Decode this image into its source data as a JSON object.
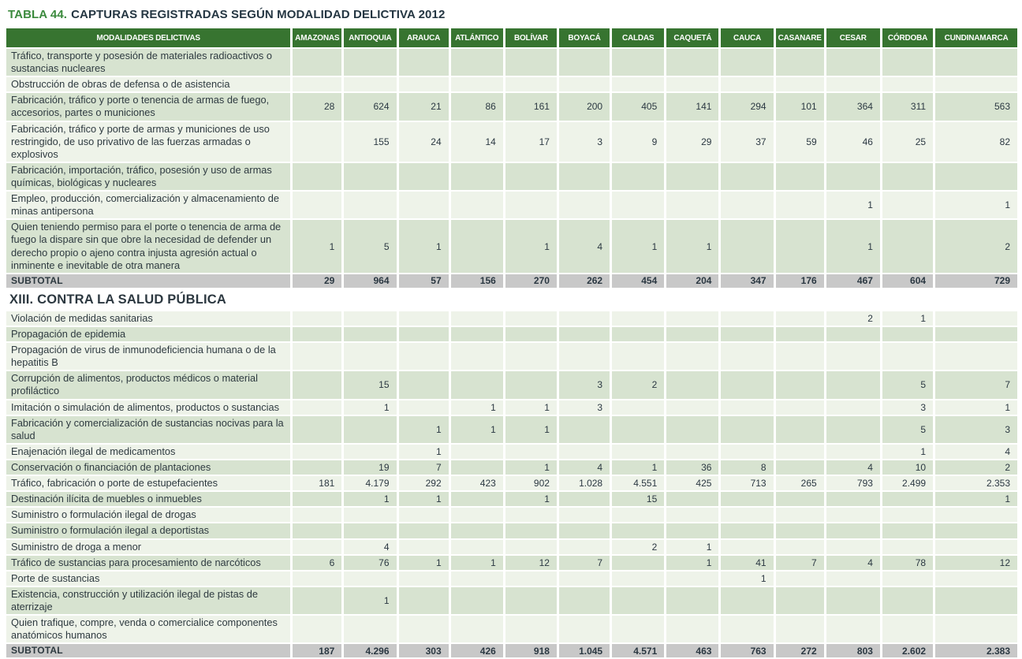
{
  "title": {
    "prefix": "TABLA 44.",
    "text": "CAPTURAS REGISTRADAS SEGÚN MODALIDAD DELICTIVA 2012"
  },
  "colors": {
    "title_green": "#3b8a3d",
    "title_dark": "#243642",
    "header_bg": "#377430",
    "row_green": "#d7e3d0",
    "row_pale": "#eef3e9",
    "subtotal_gray": "#c8c8c8"
  },
  "table": {
    "first_column_header": "MODALIDADES DELICTIVAS",
    "columns": [
      "AMAZONAS",
      "ANTIOQUIA",
      "ARAUCA",
      "ATLÁNTICO",
      "BOLÍVAR",
      "BOYACÁ",
      "CALDAS",
      "CAQUETÁ",
      "CAUCA",
      "CASANARE",
      "CESAR",
      "CÓRDOBA",
      "CUNDINAMARCA"
    ],
    "groups": [
      {
        "section": null,
        "rows": [
          {
            "type": "data",
            "label": "Tráfico, transporte y posesión de materiales radioactivos o sustancias nucleares",
            "values": [
              "",
              "",
              "",
              "",
              "",
              "",
              "",
              "",
              "",
              "",
              "",
              "",
              ""
            ]
          },
          {
            "type": "data",
            "label": "Obstrucción de obras de defensa o de asistencia",
            "values": [
              "",
              "",
              "",
              "",
              "",
              "",
              "",
              "",
              "",
              "",
              "",
              "",
              ""
            ]
          },
          {
            "type": "data",
            "label": "Fabricación, tráfico y porte o tenencia de armas de fuego, accesorios, partes o municiones",
            "values": [
              "28",
              "624",
              "21",
              "86",
              "161",
              "200",
              "405",
              "141",
              "294",
              "101",
              "364",
              "311",
              "563"
            ]
          },
          {
            "type": "data",
            "label": "Fabricación, tráfico y porte de armas y municiones de uso restringido, de uso privativo de las fuerzas armadas o explosivos",
            "values": [
              "",
              "155",
              "24",
              "14",
              "17",
              "3",
              "9",
              "29",
              "37",
              "59",
              "46",
              "25",
              "82"
            ]
          },
          {
            "type": "data",
            "label": "Fabricación, importación, tráfico, posesión y uso de armas químicas, biológicas y nucleares",
            "values": [
              "",
              "",
              "",
              "",
              "",
              "",
              "",
              "",
              "",
              "",
              "",
              "",
              ""
            ]
          },
          {
            "type": "data",
            "label": "Empleo, producción, comercialización y almacenamiento de minas antipersona",
            "values": [
              "",
              "",
              "",
              "",
              "",
              "",
              "",
              "",
              "",
              "",
              "1",
              "",
              "1"
            ]
          },
          {
            "type": "data",
            "label": "Quien teniendo permiso para el porte o tenencia de arma de fuego la dispare sin que obre la necesidad de defender un derecho propio o ajeno contra injusta agresión actual o inminente e inevitable de otra manera",
            "values": [
              "1",
              "5",
              "1",
              "",
              "1",
              "4",
              "1",
              "1",
              "",
              "",
              "1",
              "",
              "2"
            ]
          },
          {
            "type": "subtotal",
            "label": "SUBTOTAL",
            "values": [
              "29",
              "964",
              "57",
              "156",
              "270",
              "262",
              "454",
              "204",
              "347",
              "176",
              "467",
              "604",
              "729"
            ]
          }
        ]
      },
      {
        "section": "XIII. CONTRA LA SALUD PÚBLICA",
        "rows": [
          {
            "type": "data",
            "label": "Violación de medidas sanitarias",
            "values": [
              "",
              "",
              "",
              "",
              "",
              "",
              "",
              "",
              "",
              "",
              "2",
              "1",
              ""
            ]
          },
          {
            "type": "data",
            "label": "Propagación de epidemia",
            "values": [
              "",
              "",
              "",
              "",
              "",
              "",
              "",
              "",
              "",
              "",
              "",
              "",
              ""
            ]
          },
          {
            "type": "data",
            "label": "Propagación de virus de inmunodeficiencia humana o de la hepatitis B",
            "values": [
              "",
              "",
              "",
              "",
              "",
              "",
              "",
              "",
              "",
              "",
              "",
              "",
              ""
            ]
          },
          {
            "type": "data",
            "label": "Corrupción de alimentos, productos médicos o material profiláctico",
            "values": [
              "",
              "15",
              "",
              "",
              "",
              "3",
              "2",
              "",
              "",
              "",
              "",
              "5",
              "7"
            ]
          },
          {
            "type": "data",
            "label": "Imitación o simulación de alimentos, productos o sustancias",
            "values": [
              "",
              "1",
              "",
              "1",
              "1",
              "3",
              "",
              "",
              "",
              "",
              "",
              "3",
              "1"
            ]
          },
          {
            "type": "data",
            "label": "Fabricación y comercialización de sustancias nocivas para la salud",
            "values": [
              "",
              "",
              "1",
              "1",
              "1",
              "",
              "",
              "",
              "",
              "",
              "",
              "5",
              "3"
            ]
          },
          {
            "type": "data",
            "label": "Enajenación ilegal de medicamentos",
            "values": [
              "",
              "",
              "1",
              "",
              "",
              "",
              "",
              "",
              "",
              "",
              "",
              "1",
              "4"
            ]
          },
          {
            "type": "data",
            "label": "Conservación o financiación de plantaciones",
            "values": [
              "",
              "19",
              "7",
              "",
              "1",
              "4",
              "1",
              "36",
              "8",
              "",
              "4",
              "10",
              "2"
            ]
          },
          {
            "type": "data",
            "label": "Tráfico, fabricación o porte de estupefacientes",
            "values": [
              "181",
              "4.179",
              "292",
              "423",
              "902",
              "1.028",
              "4.551",
              "425",
              "713",
              "265",
              "793",
              "2.499",
              "2.353"
            ]
          },
          {
            "type": "data",
            "label": "Destinación ilícita de muebles o inmuebles",
            "values": [
              "",
              "1",
              "1",
              "",
              "1",
              "",
              "15",
              "",
              "",
              "",
              "",
              "",
              "1"
            ]
          },
          {
            "type": "data",
            "label": "Suministro o formulación ilegal de drogas",
            "values": [
              "",
              "",
              "",
              "",
              "",
              "",
              "",
              "",
              "",
              "",
              "",
              "",
              ""
            ]
          },
          {
            "type": "data",
            "label": "Suministro o formulación ilegal a deportistas",
            "values": [
              "",
              "",
              "",
              "",
              "",
              "",
              "",
              "",
              "",
              "",
              "",
              "",
              ""
            ]
          },
          {
            "type": "data",
            "label": "Suministro de droga a menor",
            "values": [
              "",
              "4",
              "",
              "",
              "",
              "",
              "2",
              "1",
              "",
              "",
              "",
              "",
              ""
            ]
          },
          {
            "type": "data",
            "label": "Tráfico de sustancias para procesamiento de narcóticos",
            "values": [
              "6",
              "76",
              "1",
              "1",
              "12",
              "7",
              "",
              "1",
              "41",
              "7",
              "4",
              "78",
              "12"
            ]
          },
          {
            "type": "data",
            "label": "Porte de sustancias",
            "values": [
              "",
              "",
              "",
              "",
              "",
              "",
              "",
              "",
              "1",
              "",
              "",
              "",
              ""
            ]
          },
          {
            "type": "data",
            "label": "Existencia, construcción y utilización ilegal de pistas de aterrizaje",
            "values": [
              "",
              "1",
              "",
              "",
              "",
              "",
              "",
              "",
              "",
              "",
              "",
              "",
              ""
            ]
          },
          {
            "type": "data",
            "label": "Quien trafique, compre, venda o comercialice componentes anatómicos humanos",
            "values": [
              "",
              "",
              "",
              "",
              "",
              "",
              "",
              "",
              "",
              "",
              "",
              "",
              ""
            ]
          },
          {
            "type": "subtotal",
            "label": "SUBTOTAL",
            "values": [
              "187",
              "4.296",
              "303",
              "426",
              "918",
              "1.045",
              "4.571",
              "463",
              "763",
              "272",
              "803",
              "2.602",
              "2.383"
            ]
          }
        ]
      }
    ]
  }
}
